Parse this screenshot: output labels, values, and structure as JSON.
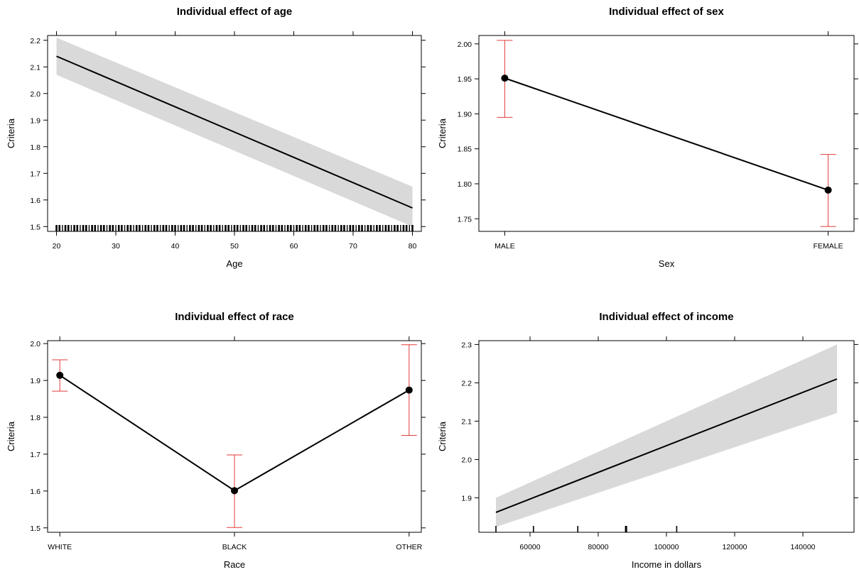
{
  "chart_data": [
    {
      "type": "line",
      "title": "Individual effect of age",
      "xlabel": "Age",
      "ylabel": "Criteria",
      "xlim": [
        18.5,
        81.5
      ],
      "ylim": [
        1.482,
        2.218
      ],
      "xticks": [
        20,
        30,
        40,
        50,
        60,
        70,
        80
      ],
      "yticks": [
        1.5,
        1.6,
        1.7,
        1.8,
        1.9,
        2.0,
        2.1,
        2.2
      ],
      "ytick_labels": [
        "1.5",
        "1.6",
        "1.7",
        "1.8",
        "1.9",
        "2.0",
        "2.1",
        "2.2"
      ],
      "x": [
        20,
        80
      ],
      "y": [
        2.14,
        1.57
      ],
      "ci_lower": [
        2.07,
        1.5
      ],
      "ci_upper": [
        2.21,
        1.65
      ],
      "rug": true,
      "grid": false,
      "legend": false
    },
    {
      "type": "line",
      "title": "Individual effect of sex",
      "xlabel": "Sex",
      "ylabel": "Criteria",
      "categories": [
        "MALE",
        "FEMALE"
      ],
      "xlim": [
        -0.08,
        1.08
      ],
      "ylim": [
        1.732,
        2.012
      ],
      "yticks": [
        1.75,
        1.8,
        1.85,
        1.9,
        1.95,
        2.0
      ],
      "ytick_labels": [
        "1.75",
        "1.80",
        "1.85",
        "1.90",
        "1.95",
        "2.00"
      ],
      "values": [
        1.951,
        1.791
      ],
      "ci_lower": [
        1.895,
        1.739
      ],
      "ci_upper": [
        2.005,
        1.842
      ],
      "grid": false,
      "legend": false
    },
    {
      "type": "line",
      "title": "Individual effect of race",
      "xlabel": "Race",
      "ylabel": "Criteria",
      "categories": [
        "WHITE",
        "BLACK",
        "OTHER"
      ],
      "xlim": [
        -0.07,
        2.07
      ],
      "ylim": [
        1.488,
        2.008
      ],
      "yticks": [
        1.5,
        1.6,
        1.7,
        1.8,
        1.9,
        2.0
      ],
      "ytick_labels": [
        "1.5",
        "1.6",
        "1.7",
        "1.8",
        "1.9",
        "2.0"
      ],
      "values": [
        1.914,
        1.601,
        1.874
      ],
      "ci_lower": [
        1.871,
        1.501,
        1.751
      ],
      "ci_upper": [
        1.956,
        1.698,
        1.997
      ],
      "grid": false,
      "legend": false
    },
    {
      "type": "line",
      "title": "Individual effect of income",
      "xlabel": "Income in dollars",
      "ylabel": "Criteria",
      "xlim": [
        45000,
        155000
      ],
      "ylim": [
        1.81,
        2.31
      ],
      "xticks": [
        60000,
        80000,
        100000,
        120000,
        140000
      ],
      "yticks": [
        1.9,
        2.0,
        2.1,
        2.2,
        2.3
      ],
      "ytick_labels": [
        "1.9",
        "2.0",
        "2.1",
        "2.2",
        "2.3"
      ],
      "x": [
        50000,
        150000
      ],
      "y": [
        1.862,
        2.21
      ],
      "ci_lower": [
        1.824,
        2.121
      ],
      "ci_upper": [
        1.9,
        2.3
      ],
      "rug_values": [
        50000,
        61000,
        74000,
        88000,
        88300,
        103000
      ],
      "grid": false,
      "legend": false
    }
  ]
}
